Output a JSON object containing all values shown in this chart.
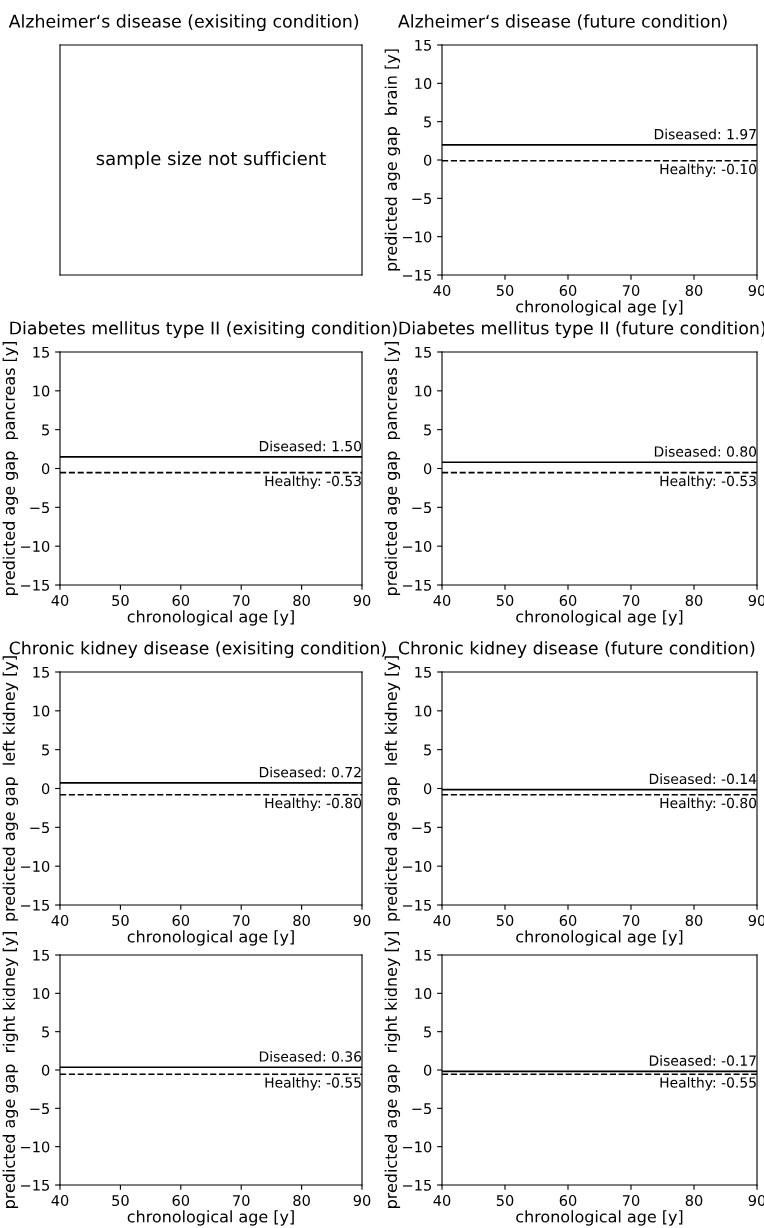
{
  "chart_data": [
    {
      "type": "other",
      "title": "Alzheimer‘s disease (exisiting condition)",
      "annotations": [
        "sample size not sufficient"
      ]
    },
    {
      "type": "scatter",
      "title": "Alzheimer‘s disease (future condition)",
      "xlabel": "chronological age [y]",
      "ylabel": "predicted age gap  brain [y]",
      "xlim": [
        40,
        90
      ],
      "xticks": [
        40,
        50,
        60,
        70,
        80,
        90
      ],
      "ylim": [
        -15,
        15
      ],
      "yticks": [
        {
          "value": -15,
          "label": "−15"
        },
        {
          "value": -10,
          "label": "−10"
        },
        {
          "value": -5,
          "label": "−5"
        },
        0,
        5,
        10,
        15
      ],
      "ref_lines": [
        {
          "axis": "y",
          "value": 1.97,
          "label": "Diseased: 1.97",
          "line_style": "solid",
          "color": "#000000"
        },
        {
          "axis": "y",
          "value": -0.1,
          "label": "Healthy: -0.10",
          "line_style": "dashed",
          "color": "#000000"
        }
      ]
    },
    {
      "type": "scatter",
      "title": "Diabetes mellitus type II (exisiting condition)",
      "xlabel": "chronological age [y]",
      "ylabel": "predicted age gap  pancreas [y]",
      "xlim": [
        40,
        90
      ],
      "xticks": [
        40,
        50,
        60,
        70,
        80,
        90
      ],
      "ylim": [
        -15,
        15
      ],
      "yticks": [
        {
          "value": -15,
          "label": "−15"
        },
        {
          "value": -10,
          "label": "−10"
        },
        {
          "value": -5,
          "label": "−5"
        },
        0,
        5,
        10,
        15
      ],
      "ref_lines": [
        {
          "axis": "y",
          "value": 1.5,
          "label": "Diseased: 1.50",
          "line_style": "solid",
          "color": "#000000"
        },
        {
          "axis": "y",
          "value": -0.53,
          "label": "Healthy: -0.53",
          "line_style": "dashed",
          "color": "#000000"
        }
      ]
    },
    {
      "type": "scatter",
      "title": "Diabetes mellitus type II (future condition)",
      "xlabel": "chronological age [y]",
      "ylabel": "predicted age gap  pancreas [y]",
      "xlim": [
        40,
        90
      ],
      "xticks": [
        40,
        50,
        60,
        70,
        80,
        90
      ],
      "ylim": [
        -15,
        15
      ],
      "yticks": [
        {
          "value": -15,
          "label": "−15"
        },
        {
          "value": -10,
          "label": "−10"
        },
        {
          "value": -5,
          "label": "−5"
        },
        0,
        5,
        10,
        15
      ],
      "ref_lines": [
        {
          "axis": "y",
          "value": 0.8,
          "label": "Diseased: 0.80",
          "line_style": "solid",
          "color": "#000000"
        },
        {
          "axis": "y",
          "value": -0.53,
          "label": "Healthy: -0.53",
          "line_style": "dashed",
          "color": "#000000"
        }
      ]
    },
    {
      "type": "scatter",
      "title": "Chronic kidney disease (exisiting condition)",
      "xlabel": "chronological age [y]",
      "ylabel": "predicted age gap  left kidney [y]",
      "xlim": [
        40,
        90
      ],
      "xticks": [
        40,
        50,
        60,
        70,
        80,
        90
      ],
      "ylim": [
        -15,
        15
      ],
      "yticks": [
        {
          "value": -15,
          "label": "−15"
        },
        {
          "value": -10,
          "label": "−10"
        },
        {
          "value": -5,
          "label": "−5"
        },
        0,
        5,
        10,
        15
      ],
      "ref_lines": [
        {
          "axis": "y",
          "value": 0.72,
          "label": "Diseased: 0.72",
          "line_style": "solid",
          "color": "#000000"
        },
        {
          "axis": "y",
          "value": -0.8,
          "label": "Healthy: -0.80",
          "line_style": "dashed",
          "color": "#000000"
        }
      ]
    },
    {
      "type": "scatter",
      "title": "Chronic kidney disease (future condition)",
      "xlabel": "chronological age [y]",
      "ylabel": "predicted age gap  left kidney [y]",
      "xlim": [
        40,
        90
      ],
      "xticks": [
        40,
        50,
        60,
        70,
        80,
        90
      ],
      "ylim": [
        -15,
        15
      ],
      "yticks": [
        {
          "value": -15,
          "label": "−15"
        },
        {
          "value": -10,
          "label": "−10"
        },
        {
          "value": -5,
          "label": "−5"
        },
        0,
        5,
        10,
        15
      ],
      "ref_lines": [
        {
          "axis": "y",
          "value": -0.14,
          "label": "Diseased: -0.14",
          "line_style": "solid",
          "color": "#000000"
        },
        {
          "axis": "y",
          "value": -0.8,
          "label": "Healthy: -0.80",
          "line_style": "dashed",
          "color": "#000000"
        }
      ]
    },
    {
      "type": "scatter",
      "xlabel": "chronological age [y]",
      "ylabel": "predicted age gap  right kidney [y]",
      "xlim": [
        40,
        90
      ],
      "xticks": [
        40,
        50,
        60,
        70,
        80,
        90
      ],
      "ylim": [
        -15,
        15
      ],
      "yticks": [
        {
          "value": -15,
          "label": "−15"
        },
        {
          "value": -10,
          "label": "−10"
        },
        {
          "value": -5,
          "label": "−5"
        },
        0,
        5,
        10,
        15
      ],
      "ref_lines": [
        {
          "axis": "y",
          "value": 0.36,
          "label": "Diseased: 0.36",
          "line_style": "solid",
          "color": "#000000"
        },
        {
          "axis": "y",
          "value": -0.55,
          "label": "Healthy: -0.55",
          "line_style": "dashed",
          "color": "#000000"
        }
      ]
    },
    {
      "type": "scatter",
      "xlabel": "chronological age [y]",
      "ylabel": "predicted age gap  right kidney [y]",
      "xlim": [
        40,
        90
      ],
      "xticks": [
        40,
        50,
        60,
        70,
        80,
        90
      ],
      "ylim": [
        -15,
        15
      ],
      "yticks": [
        {
          "value": -15,
          "label": "−15"
        },
        {
          "value": -10,
          "label": "−10"
        },
        {
          "value": -5,
          "label": "−5"
        },
        0,
        5,
        10,
        15
      ],
      "ref_lines": [
        {
          "axis": "y",
          "value": -0.17,
          "label": "Diseased: -0.17",
          "line_style": "solid",
          "color": "#000000"
        },
        {
          "axis": "y",
          "value": -0.55,
          "label": "Healthy: -0.55",
          "line_style": "dashed",
          "color": "#000000"
        }
      ]
    }
  ]
}
